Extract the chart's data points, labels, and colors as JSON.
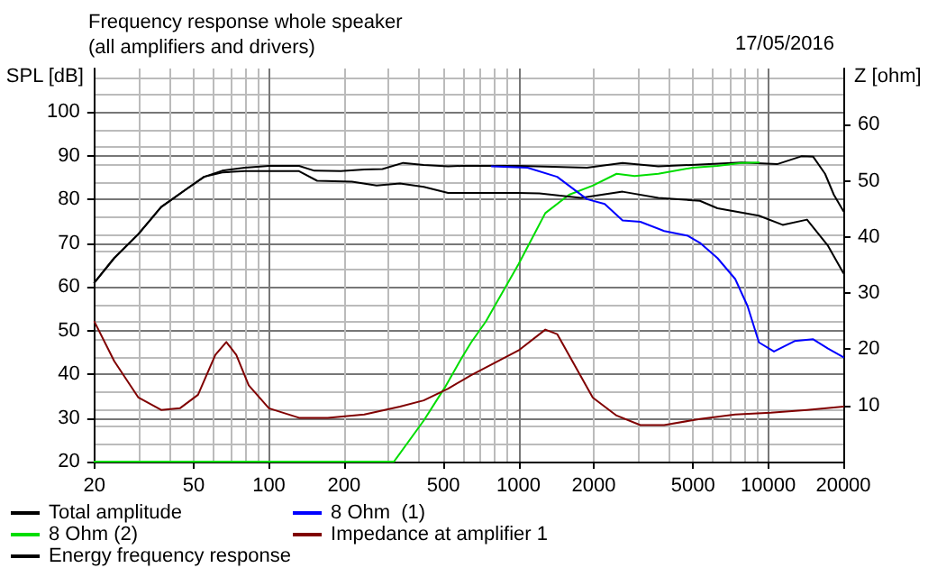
{
  "chart_data": {
    "type": "line",
    "title": "Frequency response whole speaker",
    "subtitle": "(all amplifiers and drivers)",
    "annotations": [
      "17/05/2016"
    ],
    "ylabel": "SPL [dB]",
    "y2label": "Z [ohm]",
    "log": "x",
    "grid": true,
    "legend": "bottom",
    "xlim": [
      20,
      20000
    ],
    "xticks": [
      20,
      50,
      100,
      200,
      500,
      1000,
      2000,
      5000,
      10000,
      20000
    ],
    "ylim": [
      20,
      110
    ],
    "yticks": [
      20,
      30,
      40,
      50,
      60,
      70,
      80,
      90,
      100
    ],
    "y2lim": [
      0,
      70
    ],
    "y2ticks": [
      10,
      20,
      30,
      40,
      50,
      60
    ],
    "series": [
      {
        "name": "Total amplitude",
        "color": "#000000",
        "x": [
          20,
          24,
          30,
          37,
          47,
          55,
          65,
          80,
          100,
          132,
          152,
          194,
          241,
          285,
          345,
          417,
          522,
          594,
          1000,
          1880,
          2610,
          3630,
          5330,
          7820,
          10860,
          13580,
          15150,
          16900,
          18330,
          20000
        ],
        "values": [
          61,
          66.6,
          72.1,
          78.3,
          82.5,
          85.2,
          86.6,
          87.3,
          87.7,
          87.7,
          86.6,
          86.5,
          86.9,
          87,
          88.4,
          87.9,
          87.6,
          87.7,
          87.7,
          87.3,
          88.4,
          87.6,
          88,
          88.5,
          88.1,
          89.9,
          89.8,
          85.9,
          81.1,
          77.4
        ]
      },
      {
        "name": "8 Ohm (2)",
        "color": "#00dd00",
        "x": [
          20,
          317,
          417,
          507,
          594,
          646,
          740,
          1000,
          1280,
          1594,
          1983,
          2470,
          2917,
          3630,
          4982,
          6264,
          7817,
          9180
        ],
        "values": [
          20,
          20,
          29.4,
          37,
          43.9,
          47.3,
          52.1,
          65.2,
          76.9,
          81.1,
          83.2,
          85.9,
          85.4,
          85.9,
          87.3,
          87.7,
          88.4,
          88.5
        ]
      },
      {
        "name": "Energy frequency response",
        "color": "#000000",
        "x": [
          20,
          24,
          30,
          37,
          47,
          55,
          65,
          80,
          132,
          156,
          215,
          270,
          335,
          417,
          522,
          646,
          1000,
          1212,
          1778,
          2611,
          3630,
          5327,
          6264,
          9182,
          11430,
          14310,
          17370,
          20000
        ],
        "values": [
          61,
          66.6,
          72.1,
          78.3,
          82.5,
          85.2,
          86.2,
          86.5,
          86.5,
          84.3,
          84.1,
          83.2,
          83.7,
          82.9,
          81.5,
          81.5,
          81.5,
          81.4,
          80.4,
          81.8,
          80.4,
          79.7,
          78,
          76.3,
          74.2,
          75.4,
          69.4,
          63.2
        ]
      },
      {
        "name": "8 Ohm  (1)",
        "color": "#0000ff",
        "x": [
          781,
          1086,
          1428,
          1879,
          2214,
          2611,
          3075,
          3831,
          4770,
          5327,
          6264,
          7380,
          8270,
          9182,
          10550,
          12760,
          15150,
          17370,
          20000
        ],
        "values": [
          87.6,
          87.3,
          85.2,
          80.1,
          79,
          75.2,
          74.9,
          72.8,
          71.7,
          70.1,
          66.6,
          61.8,
          55.6,
          47.3,
          45.2,
          47.6,
          48,
          45.9,
          43.9
        ]
      },
      {
        "name": "Impedance at amplifier 1",
        "color": "#800000",
        "axis": "y2",
        "x": [
          20,
          24,
          30,
          37,
          44,
          52,
          61,
          67.5,
          74,
          83,
          100,
          132,
          172,
          241,
          335,
          417,
          522,
          646,
          1000,
          1280,
          1428,
          1983,
          2470,
          3075,
          3831,
          5327,
          7380,
          10240,
          14310,
          20000
        ],
        "values": [
          24.9,
          17.9,
          11.4,
          9.2,
          9.5,
          11.9,
          19,
          21.3,
          19,
          13.6,
          9.5,
          7.8,
          7.8,
          8.4,
          9.8,
          10.9,
          13,
          15.4,
          19.8,
          23.5,
          22.7,
          11.4,
          8.2,
          6.5,
          6.5,
          7.6,
          8.4,
          8.7,
          9.2,
          9.8
        ]
      }
    ]
  }
}
